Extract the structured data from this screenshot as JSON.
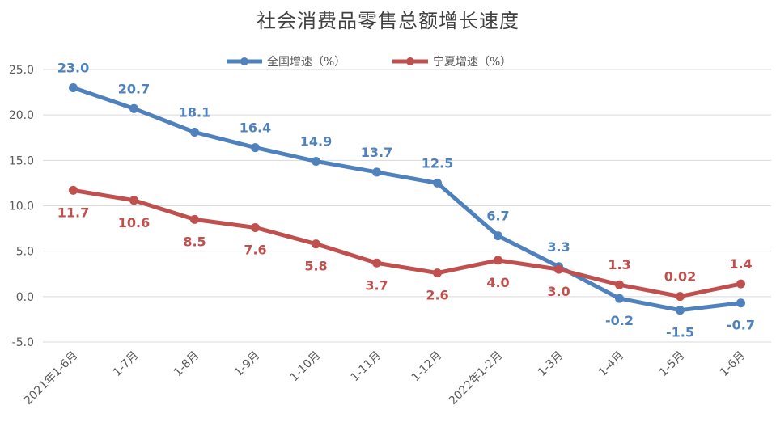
{
  "chart_data": {
    "type": "line",
    "title": "社会消费品零售总额增长速度",
    "categories": [
      "2021年1-6月",
      "1-7月",
      "1-8月",
      "1-9月",
      "1-10月",
      "1-11月",
      "1-12月",
      "2022年1-2月",
      "1-3月",
      "1-4月",
      "1-5月",
      "1-6月"
    ],
    "series": [
      {
        "name": "全国增速（%）",
        "color": "#4F81BD",
        "values": [
          23.0,
          20.7,
          18.1,
          16.4,
          14.9,
          13.7,
          12.5,
          6.7,
          3.3,
          -0.2,
          -1.5,
          -0.7
        ],
        "labels": [
          "23.0",
          "20.7",
          "18.1",
          "16.4",
          "14.9",
          "13.7",
          "12.5",
          "6.7",
          "3.3",
          "-0.2",
          "-1.5",
          "-0.7"
        ]
      },
      {
        "name": "宁夏增速（%）",
        "color": "#C0504D",
        "values": [
          11.7,
          10.6,
          8.5,
          7.6,
          5.8,
          3.7,
          2.6,
          4.0,
          3.0,
          1.3,
          0.02,
          1.4
        ],
        "labels": [
          "11.7",
          "10.6",
          "8.5",
          "7.6",
          "5.8",
          "3.7",
          "2.6",
          "4.0",
          "3.0",
          "1.3",
          "0.02",
          "1.4"
        ]
      }
    ],
    "yticks": [
      "25.0",
      "20.0",
      "15.0",
      "10.0",
      "5.0",
      "0.0",
      "-5.0"
    ],
    "ylim": [
      -5,
      25
    ],
    "grid": true,
    "legend": "top"
  }
}
